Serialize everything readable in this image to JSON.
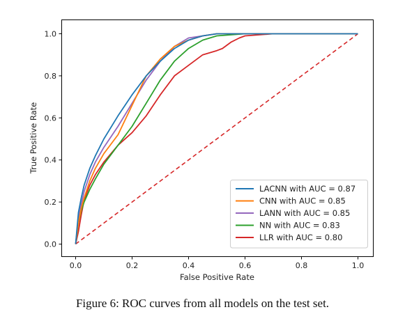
{
  "caption": "Figure 6: ROC curves from all models on the test set.",
  "chart_data": {
    "type": "line",
    "title": "",
    "xlabel": "False Positive Rate",
    "ylabel": "True Positive Rate",
    "xlim": [
      0.0,
      1.0
    ],
    "ylim": [
      0.0,
      1.0
    ],
    "xticks": [
      "0.0",
      "0.2",
      "0.4",
      "0.6",
      "0.8",
      "1.0"
    ],
    "yticks": [
      "0.0",
      "0.2",
      "0.4",
      "0.6",
      "0.8",
      "1.0"
    ],
    "grid": false,
    "legend_position": "lower-right",
    "series": [
      {
        "name": "LACNN with AUC = 0.87",
        "color": "#1f77b4",
        "style": "solid",
        "x": [
          0.0,
          0.01,
          0.02,
          0.03,
          0.05,
          0.07,
          0.1,
          0.15,
          0.2,
          0.25,
          0.3,
          0.35,
          0.4,
          0.45,
          0.5,
          0.6,
          0.7,
          0.8,
          0.9,
          1.0
        ],
        "y": [
          0.0,
          0.15,
          0.22,
          0.28,
          0.36,
          0.42,
          0.5,
          0.61,
          0.71,
          0.8,
          0.87,
          0.93,
          0.97,
          0.99,
          1.0,
          1.0,
          1.0,
          1.0,
          1.0,
          1.0
        ]
      },
      {
        "name": "CNN with AUC = 0.85",
        "color": "#ff7f0e",
        "style": "solid",
        "x": [
          0.0,
          0.01,
          0.02,
          0.03,
          0.05,
          0.07,
          0.1,
          0.15,
          0.2,
          0.25,
          0.3,
          0.35,
          0.4,
          0.45,
          0.5,
          0.6,
          0.7,
          0.8,
          0.9,
          1.0
        ],
        "y": [
          0.0,
          0.1,
          0.17,
          0.22,
          0.3,
          0.36,
          0.43,
          0.52,
          0.66,
          0.8,
          0.88,
          0.94,
          0.97,
          0.99,
          1.0,
          1.0,
          1.0,
          1.0,
          1.0,
          1.0
        ]
      },
      {
        "name": "LANN with AUC = 0.85",
        "color": "#9467bd",
        "style": "solid",
        "x": [
          0.0,
          0.01,
          0.02,
          0.03,
          0.05,
          0.07,
          0.1,
          0.15,
          0.2,
          0.25,
          0.3,
          0.35,
          0.4,
          0.45,
          0.5,
          0.6,
          0.7,
          0.8,
          0.9,
          1.0
        ],
        "y": [
          0.0,
          0.12,
          0.19,
          0.25,
          0.33,
          0.39,
          0.46,
          0.56,
          0.67,
          0.78,
          0.87,
          0.94,
          0.98,
          0.99,
          1.0,
          1.0,
          1.0,
          1.0,
          1.0,
          1.0
        ]
      },
      {
        "name": "NN with AUC = 0.83",
        "color": "#2ca02c",
        "style": "solid",
        "x": [
          0.0,
          0.01,
          0.02,
          0.03,
          0.05,
          0.07,
          0.1,
          0.15,
          0.2,
          0.25,
          0.3,
          0.35,
          0.4,
          0.45,
          0.5,
          0.6,
          0.7,
          0.8,
          0.9,
          1.0
        ],
        "y": [
          0.0,
          0.1,
          0.16,
          0.2,
          0.26,
          0.31,
          0.38,
          0.47,
          0.56,
          0.67,
          0.78,
          0.87,
          0.93,
          0.97,
          0.99,
          1.0,
          1.0,
          1.0,
          1.0,
          1.0
        ]
      },
      {
        "name": "LLR with AUC = 0.80",
        "color": "#d62728",
        "style": "solid",
        "x": [
          0.0,
          0.01,
          0.02,
          0.03,
          0.05,
          0.07,
          0.1,
          0.15,
          0.2,
          0.25,
          0.3,
          0.35,
          0.4,
          0.45,
          0.5,
          0.52,
          0.55,
          0.58,
          0.6,
          0.7,
          0.8,
          0.9,
          1.0
        ],
        "y": [
          0.0,
          0.06,
          0.14,
          0.21,
          0.28,
          0.33,
          0.39,
          0.47,
          0.53,
          0.61,
          0.71,
          0.8,
          0.85,
          0.9,
          0.92,
          0.93,
          0.96,
          0.98,
          0.99,
          1.0,
          1.0,
          1.0,
          1.0
        ]
      },
      {
        "name": "",
        "color": "#d62728",
        "style": "dashed",
        "x": [
          0.0,
          1.0
        ],
        "y": [
          0.0,
          1.0
        ]
      }
    ]
  }
}
